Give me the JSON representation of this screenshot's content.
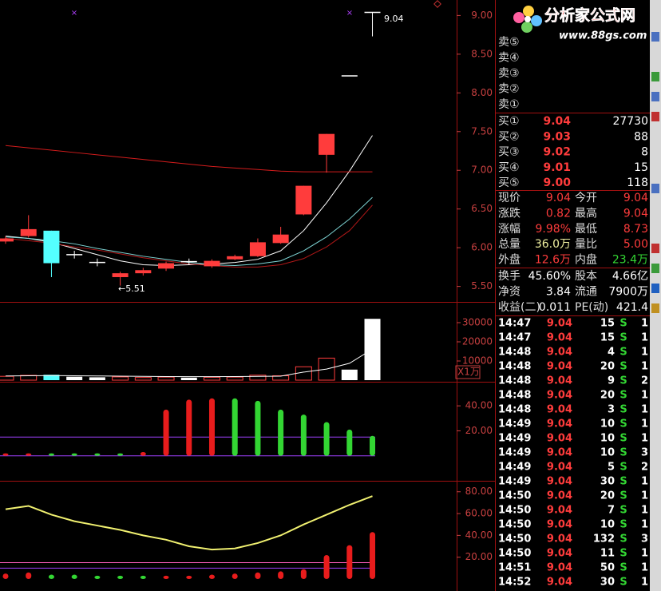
{
  "chart_data": [
    {
      "type": "candlestick",
      "ylim": [
        5.3,
        9.2
      ],
      "yticks": [
        {
          "value": 9,
          "label": "9.00"
        },
        {
          "value": 8.5,
          "label": "8.50"
        },
        {
          "value": 8,
          "label": "8.00"
        },
        {
          "value": 7.5,
          "label": "7.50"
        },
        {
          "value": 7,
          "label": "7.00"
        },
        {
          "value": 6.5,
          "label": "6.50"
        },
        {
          "value": 6,
          "label": "6.00"
        },
        {
          "value": 5.5,
          "label": "5.50"
        }
      ],
      "open": [
        6.08,
        6.15,
        6.22,
        5.91,
        5.81,
        5.62,
        5.67,
        5.73,
        5.82,
        5.76,
        5.85,
        5.89,
        6.06,
        6.43,
        7.2,
        8.22,
        9.04
      ],
      "close": [
        6.12,
        6.24,
        5.8,
        5.91,
        5.81,
        5.67,
        5.71,
        5.8,
        5.82,
        5.83,
        5.89,
        6.07,
        6.17,
        6.8,
        7.47,
        8.22,
        9.04
      ],
      "high": [
        6.15,
        6.42,
        6.22,
        5.96,
        5.86,
        5.69,
        5.74,
        5.82,
        5.86,
        5.85,
        5.91,
        6.12,
        6.27,
        6.8,
        7.47,
        8.22,
        9.04
      ],
      "low": [
        6.05,
        6.13,
        5.62,
        5.86,
        5.76,
        5.51,
        5.64,
        5.7,
        5.78,
        5.74,
        5.84,
        5.88,
        6.05,
        6.42,
        6.97,
        8.22,
        8.73
      ],
      "up_color": "#ff3c3c",
      "down_color": "#54ffff",
      "flat_color": "#ffffff",
      "series": [
        {
          "color": "#ffffff",
          "values": [
            6.15,
            6.12,
            6.07,
            5.99,
            5.91,
            5.83,
            5.78,
            5.77,
            5.78,
            5.79,
            5.81,
            5.85,
            5.96,
            6.22,
            6.58,
            6.99,
            7.45
          ]
        },
        {
          "color": "#7fd6d6",
          "values": [
            6.14,
            6.12,
            6.09,
            6.05,
            5.99,
            5.94,
            5.89,
            5.85,
            5.81,
            5.78,
            5.77,
            5.79,
            5.83,
            5.96,
            6.14,
            6.37,
            6.65
          ]
        },
        {
          "color": "#b01818",
          "values": [
            6.12,
            6.09,
            6.06,
            6.01,
            5.97,
            5.92,
            5.87,
            5.83,
            5.79,
            5.77,
            5.75,
            5.75,
            5.78,
            5.86,
            6.01,
            6.22,
            6.55
          ]
        },
        {
          "color": "#d41c1c",
          "values": [
            7.32,
            7.29,
            7.26,
            7.23,
            7.2,
            7.17,
            7.14,
            7.11,
            7.08,
            7.05,
            7.03,
            7.01,
            6.99,
            6.98,
            6.98,
            6.98,
            6.98
          ]
        }
      ],
      "annotations": [
        "9.04",
        "←5.51"
      ]
    },
    {
      "type": "volume",
      "ylim": [
        0,
        40000
      ],
      "yticks": [
        10000,
        20000,
        30000
      ],
      "unit_label": "X1万",
      "values": [
        2000,
        2500,
        2800,
        1800,
        1500,
        1700,
        1400,
        1600,
        1300,
        1500,
        1600,
        2600,
        2300,
        7000,
        11500,
        5500,
        32000
      ],
      "series": [
        {
          "color": "#ffffff",
          "values": [
            2200,
            2300,
            2400,
            2300,
            2200,
            2100,
            2000,
            1900,
            1800,
            1800,
            1900,
            2000,
            2100,
            4200,
            5800,
            8800,
            16200
          ]
        }
      ]
    },
    {
      "type": "bar",
      "ylim": [
        -20,
        58
      ],
      "yticks": [
        {
          "value": 40,
          "label": "40.00"
        },
        {
          "value": 20,
          "label": "20.00"
        }
      ],
      "values": [
        2,
        2,
        2,
        2,
        2,
        2,
        3,
        37,
        45,
        46,
        46,
        44,
        37,
        33,
        27,
        21,
        16
      ],
      "colors": [
        "#e81c1c",
        "#e81c1c",
        "#33d633",
        "#33d633",
        "#33d633",
        "#33d633",
        "#e81c1c",
        "#e81c1c",
        "#e81c1c",
        "#e81c1c",
        "#33d633",
        "#33d633",
        "#33d633",
        "#33d633",
        "#33d633",
        "#33d633",
        "#33d633"
      ],
      "reference_lines": [
        {
          "value": 15,
          "color": "#a040ff"
        },
        {
          "value": 0,
          "color": "#a040ff"
        }
      ]
    },
    {
      "type": "bar_line",
      "ylim": [
        -11,
        88.6
      ],
      "yticks": [
        {
          "value": 80,
          "label": "80.00"
        },
        {
          "value": 60,
          "label": "60.00"
        },
        {
          "value": 40,
          "label": "40.00"
        },
        {
          "value": 20,
          "label": "20.00"
        }
      ],
      "values": [
        5,
        6,
        4,
        4,
        3,
        3,
        3,
        3,
        3,
        4,
        5,
        6,
        7,
        9,
        22,
        31,
        43
      ],
      "colors": [
        "#e81c1c",
        "#e81c1c",
        "#33d633",
        "#33d633",
        "#33d633",
        "#33d633",
        "#33d633",
        "#e81c1c",
        "#e81c1c",
        "#e81c1c",
        "#e81c1c",
        "#e81c1c",
        "#e81c1c",
        "#e81c1c",
        "#e81c1c",
        "#e81c1c",
        "#e81c1c"
      ],
      "series": [
        {
          "color": "#f0f070",
          "values": [
            64,
            67,
            59,
            53,
            49,
            45,
            40,
            36,
            30,
            27,
            28,
            33,
            40,
            50,
            59,
            68,
            76
          ]
        }
      ],
      "reference_lines": [
        {
          "value": 15,
          "color": "#ff60c0"
        },
        {
          "value": 10,
          "color": "#a040ff"
        }
      ]
    }
  ],
  "quote_panel": {
    "watermark": {
      "name": "分析家公式网",
      "url": "www.88gs.com"
    },
    "sell_levels": [
      "卖⑤",
      "卖④",
      "卖③",
      "卖②",
      "卖①"
    ],
    "buy_levels": [
      {
        "label": "买①",
        "price": "9.04",
        "volume": "27730"
      },
      {
        "label": "买②",
        "price": "9.03",
        "volume": "88"
      },
      {
        "label": "买③",
        "price": "9.02",
        "volume": "8"
      },
      {
        "label": "买④",
        "price": "9.01",
        "volume": "15"
      },
      {
        "label": "买⑤",
        "price": "9.00",
        "volume": "118"
      }
    ],
    "stats": [
      [
        {
          "label": "现价",
          "value": "9.04",
          "color": "#ff3c3c"
        },
        {
          "label": "今开",
          "value": "9.04",
          "color": "#ff3c3c"
        }
      ],
      [
        {
          "label": "涨跌",
          "value": "0.82",
          "color": "#ff3c3c"
        },
        {
          "label": "最高",
          "value": "9.04",
          "color": "#ff3c3c"
        }
      ],
      [
        {
          "label": "涨幅",
          "value": "9.98%",
          "color": "#ff3c3c"
        },
        {
          "label": "最低",
          "value": "8.73",
          "color": "#ff3c3c"
        }
      ],
      [
        {
          "label": "总量",
          "value": "36.0万",
          "color": "#f0f0a0"
        },
        {
          "label": "量比",
          "value": "5.00",
          "color": "#ff3c3c"
        }
      ],
      [
        {
          "label": "外盘",
          "value": "12.6万",
          "color": "#ff3c3c"
        },
        {
          "label": "内盘",
          "value": "23.4万",
          "color": "#33d633"
        }
      ],
      [
        {
          "label": "换手",
          "value": "45.60%",
          "color": "#ffffff"
        },
        {
          "label": "股本",
          "value": "4.66亿",
          "color": "#ffffff"
        }
      ],
      [
        {
          "label": "净资",
          "value": "3.84",
          "color": "#ffffff"
        },
        {
          "label": "流通",
          "value": "7900万",
          "color": "#ffffff"
        }
      ],
      [
        {
          "label": "收益(二)",
          "value": "0.011",
          "color": "#ffffff"
        },
        {
          "label": "PE(动)",
          "value": "421.4",
          "color": "#ffffff"
        }
      ]
    ],
    "trades": [
      [
        "14:47",
        "9.04",
        "15",
        "S",
        "1"
      ],
      [
        "14:47",
        "9.04",
        "15",
        "S",
        "1"
      ],
      [
        "14:48",
        "9.04",
        "4",
        "S",
        "1"
      ],
      [
        "14:48",
        "9.04",
        "20",
        "S",
        "1"
      ],
      [
        "14:48",
        "9.04",
        "9",
        "S",
        "2"
      ],
      [
        "14:48",
        "9.04",
        "20",
        "S",
        "1"
      ],
      [
        "14:48",
        "9.04",
        "3",
        "S",
        "1"
      ],
      [
        "14:49",
        "9.04",
        "10",
        "S",
        "1"
      ],
      [
        "14:49",
        "9.04",
        "10",
        "S",
        "1"
      ],
      [
        "14:49",
        "9.04",
        "10",
        "S",
        "3"
      ],
      [
        "14:49",
        "9.04",
        "5",
        "S",
        "2"
      ],
      [
        "14:49",
        "9.04",
        "30",
        "S",
        "1"
      ],
      [
        "14:50",
        "9.04",
        "20",
        "S",
        "1"
      ],
      [
        "14:50",
        "9.04",
        "7",
        "S",
        "1"
      ],
      [
        "14:50",
        "9.04",
        "10",
        "S",
        "1"
      ],
      [
        "14:50",
        "9.04",
        "132",
        "S",
        "3"
      ],
      [
        "14:50",
        "9.04",
        "11",
        "S",
        "1"
      ],
      [
        "14:51",
        "9.04",
        "50",
        "S",
        "1"
      ],
      [
        "14:52",
        "9.04",
        "30",
        "S",
        "1"
      ]
    ]
  }
}
